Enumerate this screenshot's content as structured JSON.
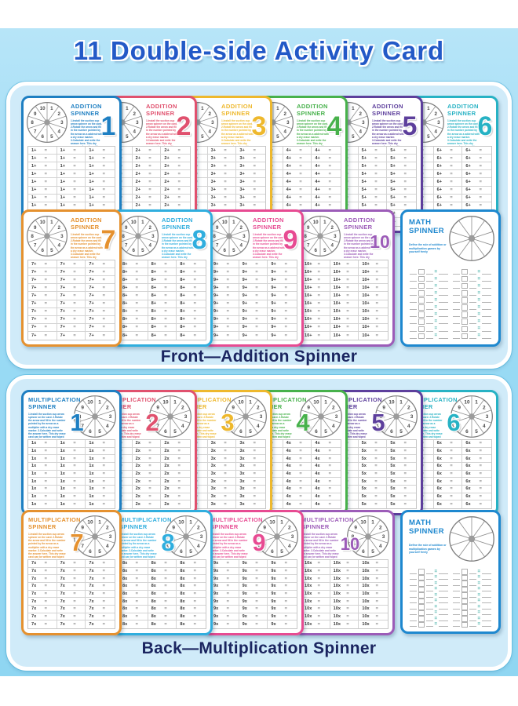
{
  "title": "11 Double-side Activity Card",
  "front": {
    "caption": "Front—Addition Spinner",
    "card_heading": [
      "ADDITION",
      "SPINNER"
    ],
    "instructions": "1.Install the suction cup arrow spinner on the card. 2.Rotate the arrow and fill in the number pointed by the arrow as a addend with a dry erase marker. 3.Calculate and write the answer here. This dry erase card can be written and wiped repeatedly.",
    "operator": "+",
    "equals": "=",
    "table_rows": 10,
    "table_cols": 3,
    "cards": [
      {
        "number": "1",
        "color": "#1e7fc2"
      },
      {
        "number": "2",
        "color": "#e0516e"
      },
      {
        "number": "3",
        "color": "#eeb82d"
      },
      {
        "number": "4",
        "color": "#47b14b"
      },
      {
        "number": "5",
        "color": "#5d3f9c"
      },
      {
        "number": "6",
        "color": "#27b2c4"
      },
      {
        "number": "7",
        "color": "#e5912f"
      },
      {
        "number": "8",
        "color": "#30aede"
      },
      {
        "number": "9",
        "color": "#e74b92"
      },
      {
        "number": "10",
        "color": "#9c5cb8"
      }
    ]
  },
  "back": {
    "caption": "Back—Multiplication Spinner",
    "card_heading": [
      "MULTIPLICATION",
      "SPINNER"
    ],
    "instructions": "1.Install the suction cup arrow spinner on the card. 2.Rotate the arrow and fill in the number pointed by the arrow as a multiplier with a dry erase marker. 3.Calculate and write the answer here. This dry erase card can be written and wiped repeatedly.",
    "operator": "x",
    "equals": "=",
    "table_rows": 9,
    "table_cols": 3,
    "cards": [
      {
        "number": "1",
        "color": "#1e7fc2"
      },
      {
        "number": "2",
        "color": "#e0516e"
      },
      {
        "number": "3",
        "color": "#eeb82d"
      },
      {
        "number": "4",
        "color": "#47b14b"
      },
      {
        "number": "5",
        "color": "#5d3f9c"
      },
      {
        "number": "6",
        "color": "#27b2c4"
      },
      {
        "number": "7",
        "color": "#e5912f"
      },
      {
        "number": "8",
        "color": "#30aede"
      },
      {
        "number": "9",
        "color": "#e74b92"
      },
      {
        "number": "10",
        "color": "#9c5cb8"
      }
    ]
  },
  "math_card": {
    "heading": [
      "MATH",
      "SPINNER"
    ],
    "description": "Define the rule of addition or multiplication games by yourself freely",
    "color": "#1e88cf",
    "equals": "=",
    "equals_color": "#35a8a0",
    "table_rows": 10,
    "table_cols": 2
  },
  "wheel_numbers": [
    "1",
    "2",
    "3",
    "4",
    "5",
    "6",
    "7",
    "8",
    "9",
    "10"
  ],
  "palette": {
    "background": "#9cdbf5",
    "panel": "#d0ebf9",
    "title_color": "#2359c7",
    "caption_color": "#1b2560"
  }
}
